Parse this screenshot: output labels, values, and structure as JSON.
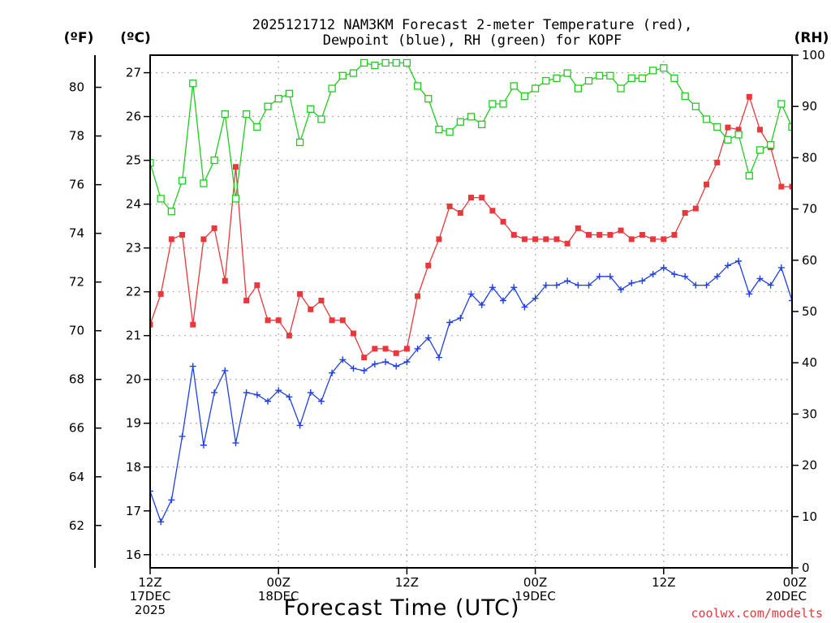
{
  "chart_data": {
    "type": "line",
    "title_line1": "2025121712 NAM3KM Forecast 2-meter Temperature (red),",
    "title_line2": "Dewpoint (blue), RH (green) for KOPF",
    "xlabel": "Forecast Time (UTC)",
    "credit": "coolwx.com/modelts",
    "unit_f": "(ºF)",
    "unit_c": "(ºC)",
    "unit_rh": "(RH)",
    "colors": {
      "temperature": "#e8383c",
      "dewpoint": "#2040e0",
      "rh": "#20cc20"
    },
    "x_hours_range": [
      0,
      60
    ],
    "c_range": [
      15.7,
      27.4
    ],
    "f_ticks": [
      "62",
      "64",
      "66",
      "68",
      "70",
      "72",
      "74",
      "76",
      "78",
      "80"
    ],
    "c_ticks": [
      "16",
      "17",
      "18",
      "19",
      "20",
      "21",
      "22",
      "23",
      "24",
      "25",
      "26",
      "27"
    ],
    "rh_ticks": [
      "0",
      "10",
      "20",
      "30",
      "40",
      "50",
      "60",
      "70",
      "80",
      "90",
      "100"
    ],
    "x_ticks": [
      {
        "hour": 0,
        "line1": "12Z",
        "line2": "17DEC",
        "line3": "2025"
      },
      {
        "hour": 12,
        "line1": "00Z",
        "line2": "18DEC",
        "line3": ""
      },
      {
        "hour": 24,
        "line1": "12Z",
        "line2": "",
        "line3": ""
      },
      {
        "hour": 36,
        "line1": "00Z",
        "line2": "19DEC",
        "line3": ""
      },
      {
        "hour": 48,
        "line1": "12Z",
        "line2": "",
        "line3": ""
      },
      {
        "hour": 60,
        "line1": "00Z",
        "line2": "20DEC",
        "line3": ""
      }
    ],
    "series": [
      {
        "key": "temperature",
        "marker": "filled-square",
        "values": [
          21.25,
          21.95,
          23.2,
          23.3,
          21.25,
          23.2,
          23.45,
          22.25,
          24.85,
          21.8,
          22.15,
          21.35,
          21.35,
          21.0,
          21.95,
          21.6,
          21.8,
          21.35,
          21.35,
          21.05,
          20.5,
          20.7,
          20.7,
          20.6,
          20.7,
          21.9,
          22.6,
          23.2,
          23.95,
          23.8,
          24.15,
          24.15,
          23.85,
          23.6,
          23.3,
          23.2,
          23.2,
          23.2,
          23.2,
          23.1,
          23.45,
          23.3,
          23.3,
          23.3,
          23.4,
          23.2,
          23.3,
          23.2,
          23.2,
          23.3,
          23.8,
          23.9,
          24.45,
          24.95,
          25.75,
          25.7,
          26.45,
          25.7,
          25.3,
          24.4,
          24.4
        ]
      },
      {
        "key": "dewpoint",
        "marker": "plus",
        "values": [
          17.45,
          16.75,
          17.25,
          18.7,
          20.3,
          18.5,
          19.7,
          20.2,
          18.55,
          19.7,
          19.65,
          19.5,
          19.75,
          19.6,
          18.95,
          19.7,
          19.5,
          20.15,
          20.45,
          20.25,
          20.2,
          20.35,
          20.4,
          20.3,
          20.4,
          20.7,
          20.95,
          20.5,
          21.3,
          21.4,
          21.95,
          21.7,
          22.1,
          21.8,
          22.1,
          21.65,
          21.85,
          22.15,
          22.15,
          22.25,
          22.15,
          22.15,
          22.35,
          22.35,
          22.05,
          22.2,
          22.25,
          22.4,
          22.55,
          22.4,
          22.35,
          22.15,
          22.15,
          22.35,
          22.6,
          22.7,
          21.95,
          22.3,
          22.15,
          22.55,
          21.8
        ]
      },
      {
        "key": "rh",
        "marker": "open-square",
        "values": [
          79,
          72,
          69.5,
          75.5,
          94.5,
          75,
          79.5,
          88.5,
          72,
          88.5,
          86,
          90,
          91.5,
          92.5,
          83,
          89.5,
          87.5,
          93.5,
          96,
          96.5,
          98.5,
          98,
          98.5,
          98.5,
          98.5,
          94,
          91.5,
          85.5,
          85,
          87,
          88,
          86.5,
          90.5,
          90.5,
          94,
          92,
          93.5,
          95,
          95.5,
          96.5,
          93.5,
          95,
          96,
          96,
          93.5,
          95.5,
          95.5,
          97,
          97.5,
          95.5,
          92,
          90,
          87.5,
          86,
          83.5,
          84.5,
          76.5,
          81.5,
          82.5,
          90.5,
          86
        ]
      }
    ]
  }
}
